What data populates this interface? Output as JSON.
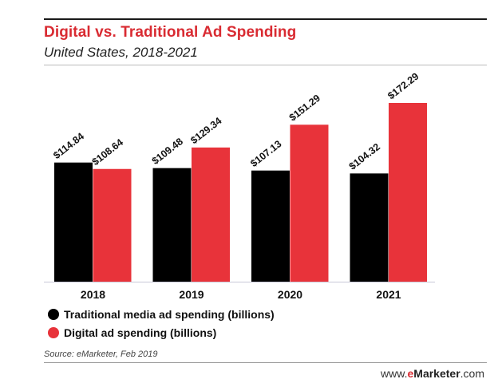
{
  "chart_data": {
    "type": "bar",
    "title": "Digital vs. Traditional Ad Spending",
    "subtitle": "United States, 2018-2021",
    "categories": [
      "2018",
      "2019",
      "2020",
      "2021"
    ],
    "series": [
      {
        "name": "Traditional media ad spending (billions)",
        "color": "#000000",
        "values": [
          114.84,
          109.48,
          107.13,
          104.32
        ],
        "labels": [
          "$114.84",
          "$109.48",
          "$107.13",
          "$104.32"
        ]
      },
      {
        "name": "Digital ad spending (billions)",
        "color": "#e8333a",
        "values": [
          108.64,
          129.34,
          151.29,
          172.29
        ],
        "labels": [
          "$108.64",
          "$129.34",
          "$151.29",
          "$172.29"
        ]
      }
    ],
    "xlabel": "",
    "ylabel": "",
    "ylim": [
      0,
      172.29
    ],
    "grid": false,
    "legend_position": "bottom-left",
    "source": "Source: eMarketer, Feb 2019"
  },
  "footer": {
    "prefix": "www.",
    "e": "e",
    "brand": "Marketer",
    "suffix": ".com"
  }
}
